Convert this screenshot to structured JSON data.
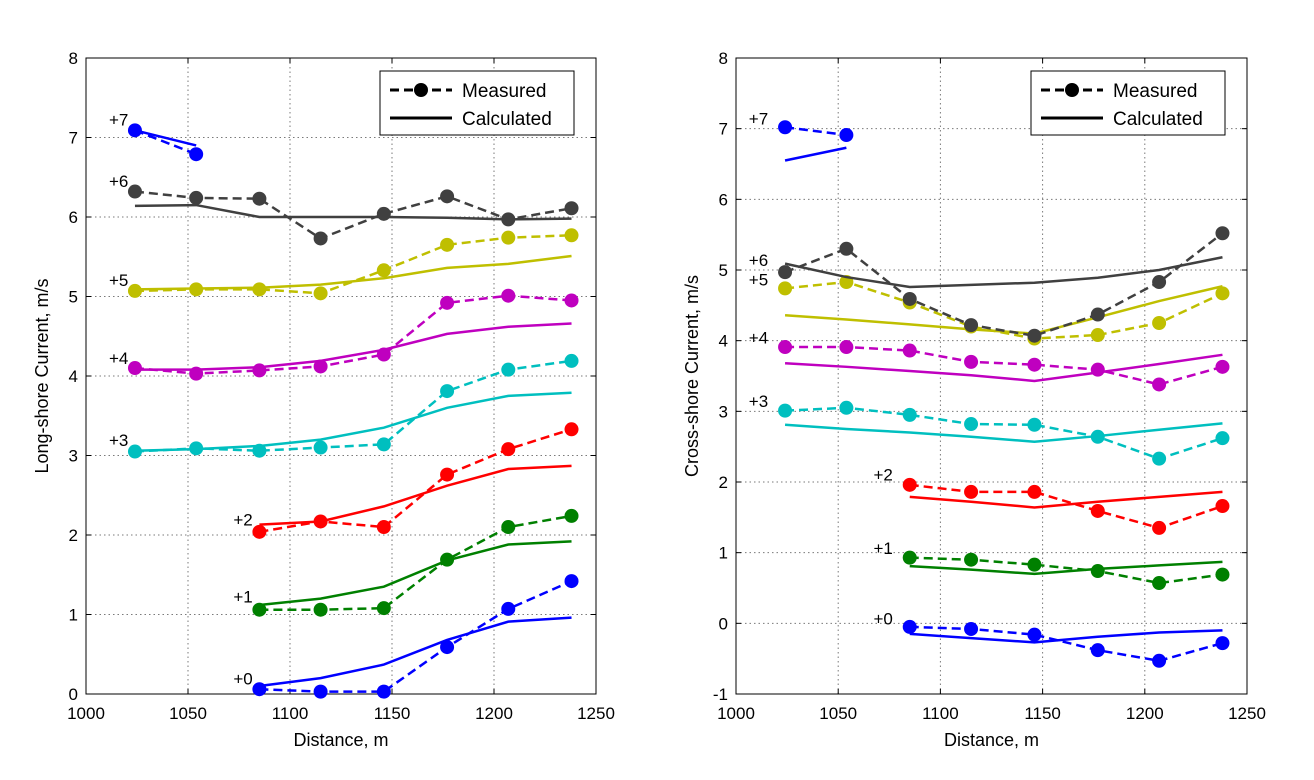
{
  "colors": {
    "+0": "#0000ff",
    "+1": "#008000",
    "+2": "#ff0000",
    "+3": "#00bfbf",
    "+4": "#bf00bf",
    "+5": "#bfbf00",
    "+6": "#404040",
    "+7": "#0000ff",
    "legend": "#000000"
  },
  "chart_data": [
    {
      "type": "line",
      "xlabel": "Distance, m",
      "ylabel": "Long-shore Current, m/s",
      "xlim": [
        1000,
        1250
      ],
      "ylim": [
        0,
        8
      ],
      "xticks": [
        1000,
        1050,
        1100,
        1150,
        1200,
        1250
      ],
      "yticks": [
        0,
        1,
        2,
        3,
        4,
        5,
        6,
        7,
        8
      ],
      "grid": true,
      "legend": {
        "position": "top-right",
        "measured": "Measured",
        "calculated": "Calculated"
      },
      "series": [
        {
          "label": "+0",
          "label_pos": [
            1077,
            0.12
          ],
          "measured": {
            "x": [
              1085,
              1115,
              1146,
              1177,
              1207,
              1238
            ],
            "y": [
              0.06,
              0.03,
              0.03,
              0.59,
              1.07,
              1.42
            ]
          },
          "calculated": {
            "x": [
              1085,
              1115,
              1146,
              1177,
              1207,
              1238
            ],
            "y": [
              0.1,
              0.2,
              0.37,
              0.68,
              0.91,
              0.96
            ]
          }
        },
        {
          "label": "+1",
          "label_pos": [
            1077,
            1.15
          ],
          "measured": {
            "x": [
              1085,
              1115,
              1146,
              1177,
              1207,
              1238
            ],
            "y": [
              1.06,
              1.06,
              1.08,
              1.69,
              2.1,
              2.24
            ]
          },
          "calculated": {
            "x": [
              1085,
              1115,
              1146,
              1177,
              1207,
              1238
            ],
            "y": [
              1.12,
              1.2,
              1.35,
              1.68,
              1.88,
              1.92
            ]
          }
        },
        {
          "label": "+2",
          "label_pos": [
            1077,
            2.12
          ],
          "measured": {
            "x": [
              1085,
              1115,
              1146,
              1177,
              1207,
              1238
            ],
            "y": [
              2.04,
              2.17,
              2.1,
              2.76,
              3.08,
              3.33
            ]
          },
          "calculated": {
            "x": [
              1085,
              1115,
              1146,
              1177,
              1207,
              1238
            ],
            "y": [
              2.13,
              2.17,
              2.36,
              2.62,
              2.83,
              2.87
            ]
          }
        },
        {
          "label": "+3",
          "label_pos": [
            1016,
            3.12
          ],
          "measured": {
            "x": [
              1024,
              1054,
              1085,
              1115,
              1146,
              1177,
              1207,
              1238
            ],
            "y": [
              3.05,
              3.09,
              3.06,
              3.1,
              3.14,
              3.81,
              4.08,
              4.19
            ]
          },
          "calculated": {
            "x": [
              1024,
              1054,
              1085,
              1115,
              1146,
              1177,
              1207,
              1238
            ],
            "y": [
              3.06,
              3.08,
              3.12,
              3.2,
              3.35,
              3.6,
              3.75,
              3.79
            ]
          }
        },
        {
          "label": "+4",
          "label_pos": [
            1016,
            4.15
          ],
          "measured": {
            "x": [
              1024,
              1054,
              1085,
              1115,
              1146,
              1177,
              1207,
              1238
            ],
            "y": [
              4.1,
              4.03,
              4.07,
              4.12,
              4.27,
              4.92,
              5.01,
              4.95
            ]
          },
          "calculated": {
            "x": [
              1024,
              1054,
              1085,
              1115,
              1146,
              1177,
              1207,
              1238
            ],
            "y": [
              4.08,
              4.08,
              4.11,
              4.19,
              4.33,
              4.53,
              4.62,
              4.66
            ]
          }
        },
        {
          "label": "+5",
          "label_pos": [
            1016,
            5.13
          ],
          "measured": {
            "x": [
              1024,
              1054,
              1085,
              1115,
              1146,
              1177,
              1207,
              1238
            ],
            "y": [
              5.07,
              5.09,
              5.09,
              5.04,
              5.33,
              5.65,
              5.74,
              5.77
            ]
          },
          "calculated": {
            "x": [
              1024,
              1054,
              1085,
              1115,
              1146,
              1177,
              1207,
              1238
            ],
            "y": [
              5.09,
              5.1,
              5.11,
              5.15,
              5.23,
              5.36,
              5.41,
              5.51
            ]
          }
        },
        {
          "label": "+6",
          "label_pos": [
            1016,
            6.38
          ],
          "measured": {
            "x": [
              1024,
              1054,
              1085,
              1115,
              1146,
              1177,
              1207,
              1238
            ],
            "y": [
              6.32,
              6.24,
              6.23,
              5.73,
              6.04,
              6.26,
              5.97,
              6.11
            ]
          },
          "calculated": {
            "x": [
              1024,
              1054,
              1085,
              1115,
              1146,
              1177,
              1207,
              1238
            ],
            "y": [
              6.14,
              6.15,
              6.0,
              6.0,
              6.0,
              5.99,
              5.97,
              5.98
            ]
          }
        },
        {
          "label": "+7",
          "label_pos": [
            1016,
            7.15
          ],
          "measured": {
            "x": [
              1024,
              1054
            ],
            "y": [
              7.09,
              6.79
            ]
          },
          "calculated": {
            "x": [
              1024,
              1054
            ],
            "y": [
              7.09,
              6.9
            ]
          }
        }
      ]
    },
    {
      "type": "line",
      "xlabel": "Distance, m",
      "ylabel": "Cross-shore Current, m/s",
      "xlim": [
        1000,
        1250
      ],
      "ylim": [
        -1,
        8
      ],
      "xticks": [
        1000,
        1050,
        1100,
        1150,
        1200,
        1250
      ],
      "yticks": [
        -1,
        0,
        1,
        2,
        3,
        4,
        5,
        6,
        7,
        8
      ],
      "grid": true,
      "legend": {
        "position": "top-right",
        "measured": "Measured",
        "calculated": "Calculated"
      },
      "series": [
        {
          "label": "+0",
          "label_pos": [
            1072,
            -0.02
          ],
          "measured": {
            "x": [
              1085,
              1115,
              1146,
              1177,
              1207,
              1238
            ],
            "y": [
              -0.05,
              -0.08,
              -0.16,
              -0.38,
              -0.53,
              -0.28
            ]
          },
          "calculated": {
            "x": [
              1085,
              1115,
              1146,
              1177,
              1207,
              1238
            ],
            "y": [
              -0.15,
              -0.21,
              -0.27,
              -0.19,
              -0.13,
              -0.1
            ]
          }
        },
        {
          "label": "+1",
          "label_pos": [
            1072,
            0.98
          ],
          "measured": {
            "x": [
              1085,
              1115,
              1146,
              1177,
              1207,
              1238
            ],
            "y": [
              0.93,
              0.9,
              0.83,
              0.74,
              0.57,
              0.69
            ]
          },
          "calculated": {
            "x": [
              1085,
              1115,
              1146,
              1177,
              1207,
              1238
            ],
            "y": [
              0.81,
              0.76,
              0.7,
              0.77,
              0.82,
              0.87
            ]
          }
        },
        {
          "label": "+2",
          "label_pos": [
            1072,
            2.02
          ],
          "measured": {
            "x": [
              1085,
              1115,
              1146,
              1177,
              1207,
              1238
            ],
            "y": [
              1.96,
              1.86,
              1.86,
              1.59,
              1.35,
              1.66
            ]
          },
          "calculated": {
            "x": [
              1085,
              1115,
              1146,
              1177,
              1207,
              1238
            ],
            "y": [
              1.79,
              1.72,
              1.64,
              1.72,
              1.79,
              1.86
            ]
          }
        },
        {
          "label": "+3",
          "label_pos": [
            1011,
            3.06
          ],
          "measured": {
            "x": [
              1024,
              1054,
              1085,
              1115,
              1146,
              1177,
              1207,
              1238
            ],
            "y": [
              3.01,
              3.05,
              2.95,
              2.82,
              2.81,
              2.64,
              2.33,
              2.62
            ]
          },
          "calculated": {
            "x": [
              1024,
              1054,
              1085,
              1115,
              1146,
              1177,
              1207,
              1238
            ],
            "y": [
              2.81,
              2.75,
              2.7,
              2.64,
              2.57,
              2.65,
              2.74,
              2.83
            ]
          }
        },
        {
          "label": "+4",
          "label_pos": [
            1011,
            3.96
          ],
          "measured": {
            "x": [
              1024,
              1054,
              1085,
              1115,
              1146,
              1177,
              1207,
              1238
            ],
            "y": [
              3.91,
              3.91,
              3.86,
              3.7,
              3.66,
              3.59,
              3.38,
              3.63
            ]
          },
          "calculated": {
            "x": [
              1024,
              1054,
              1085,
              1115,
              1146,
              1177,
              1207,
              1238
            ],
            "y": [
              3.68,
              3.63,
              3.57,
              3.51,
              3.43,
              3.55,
              3.67,
              3.8
            ]
          }
        },
        {
          "label": "+5",
          "label_pos": [
            1011,
            4.78
          ],
          "measured": {
            "x": [
              1024,
              1054,
              1085,
              1115,
              1146,
              1177,
              1207,
              1238
            ],
            "y": [
              4.74,
              4.83,
              4.54,
              4.2,
              4.03,
              4.08,
              4.25,
              4.67
            ]
          },
          "calculated": {
            "x": [
              1024,
              1054,
              1085,
              1115,
              1146,
              1177,
              1207,
              1238
            ],
            "y": [
              4.36,
              4.3,
              4.23,
              4.16,
              4.1,
              4.33,
              4.56,
              4.77
            ]
          }
        },
        {
          "label": "+6",
          "label_pos": [
            1011,
            5.06
          ],
          "measured": {
            "x": [
              1024,
              1054,
              1085,
              1115,
              1146,
              1177,
              1207,
              1238
            ],
            "y": [
              4.97,
              5.3,
              4.59,
              4.22,
              4.07,
              4.37,
              4.83,
              5.52
            ]
          },
          "calculated": {
            "x": [
              1024,
              1054,
              1085,
              1115,
              1146,
              1177,
              1207,
              1238
            ],
            "y": [
              5.09,
              4.9,
              4.76,
              4.79,
              4.82,
              4.89,
              5.0,
              5.18
            ]
          }
        },
        {
          "label": "+7",
          "label_pos": [
            1011,
            7.06
          ],
          "measured": {
            "x": [
              1024,
              1054
            ],
            "y": [
              7.02,
              6.91
            ]
          },
          "calculated": {
            "x": [
              1024,
              1054
            ],
            "y": [
              6.55,
              6.73
            ]
          }
        }
      ]
    }
  ]
}
